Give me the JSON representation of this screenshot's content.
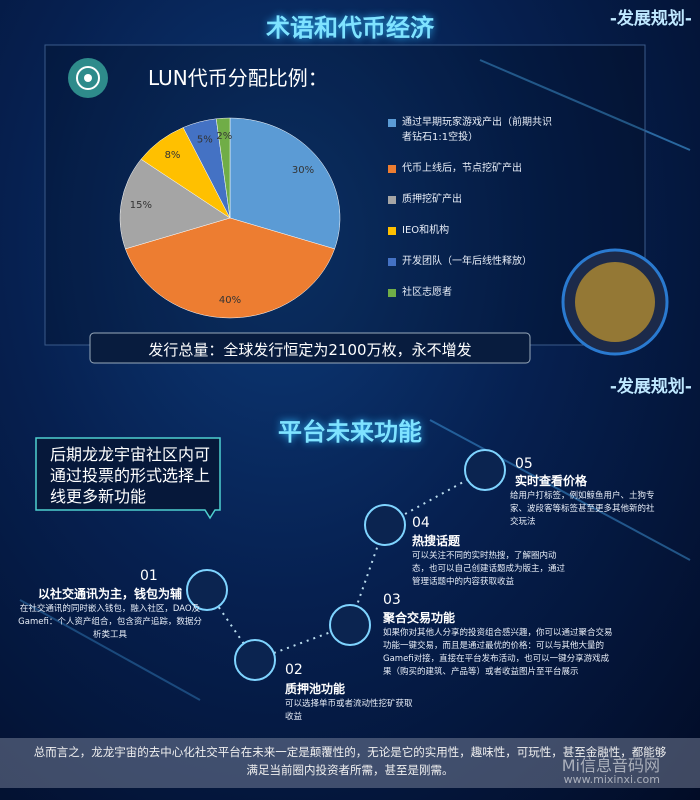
{
  "header": {
    "title": "术语和代币经济",
    "tag": "-发展规划-"
  },
  "chart_data": {
    "type": "pie",
    "title": "LUN代币分配比例：",
    "categories": [
      "通过早期玩家游戏产出（前期共识者钻石1:1空投）",
      "代币上线后，节点挖矿产出",
      "质押挖矿产出",
      "IEO和机构",
      "开发团队（一年后线性释放）",
      "社区志愿者"
    ],
    "values": [
      30,
      40,
      15,
      8,
      5,
      2
    ],
    "value_labels": [
      "30%",
      "40%",
      "15%",
      "8%",
      "5%",
      "2%"
    ],
    "colors": [
      "#5b9bd5",
      "#ed7d31",
      "#a5a5a5",
      "#ffc000",
      "#4472c4",
      "#70ad47"
    ]
  },
  "total_note": "发行总量：全球发行恒定为2100万枚，永不增发",
  "features": {
    "title": "平台未来功能",
    "tag": "-发展规划-",
    "callout": "后期龙龙宇宙社区内可通过投票的形式选择上线更多新功能",
    "steps": [
      {
        "number": "01",
        "title": "以社交通讯为主，钱包为辅",
        "desc": "在社交通讯的同时嵌入钱包，融入社区，DAO及Gamefi：个人资产组合，包含资产追踪，数据分析类工具"
      },
      {
        "number": "02",
        "title": "质押池功能",
        "desc": "可以选择单币或者流动性挖矿获取收益"
      },
      {
        "number": "03",
        "title": "聚合交易功能",
        "desc": "如果你对其他人分享的投资组合感兴趣，你可以通过聚合交易功能一键交易，而且是通过最优的价格：可以与其他大量的Gamefi对接，直接在平台发布活动，也可以一键分享游戏成果（购买的建筑、产品等）或者收益图片至平台展示"
      },
      {
        "number": "04",
        "title": "热搜话题",
        "desc": "可以关注不同的实时热搜，了解圈内动态，也可以自己创建话题成为版主，通过管理话题中的内容获取收益"
      },
      {
        "number": "05",
        "title": "实时查看价格",
        "desc": "给用户打标签，例如鲸鱼用户、土狗专家、波段客等标签甚至更多其他新的社交玩法"
      }
    ]
  },
  "summary": "总而言之，龙龙宇宙的去中心化社交平台在未来一定是颠覆性的，无论是它的实用性，趣味性，可玩性，甚至金融性，都能够满足当前圈内投资者所需，甚至是刚需。",
  "watermark": {
    "name": "Mi信息音码网",
    "url": "www.mixinxi.com"
  }
}
